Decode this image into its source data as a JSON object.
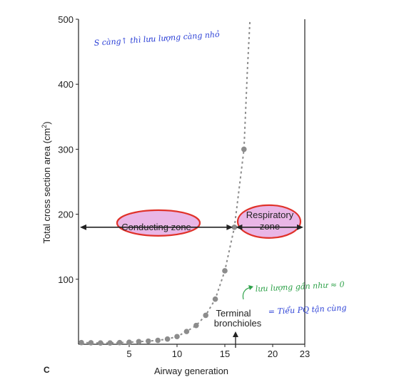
{
  "chart_data": {
    "type": "scatter",
    "xlabel": "Airway generation",
    "ylabel": "Total cross section area (cm²)",
    "ylabel_main": "Total cross section area (cm",
    "ylabel_sup": "2",
    "ylabel_end": ")",
    "xlim": [
      0,
      23
    ],
    "ylim": [
      0,
      500
    ],
    "x_ticks": [
      5,
      10,
      15,
      20,
      23
    ],
    "y_ticks": [
      100,
      200,
      300,
      400,
      500
    ],
    "grid": false,
    "x": [
      0,
      1,
      2,
      3,
      4,
      5,
      6,
      7,
      8,
      9,
      10,
      11,
      12,
      13,
      14,
      15,
      16
    ],
    "y": [
      2.5,
      2.3,
      2.0,
      2.0,
      2.5,
      3.1,
      4.0,
      4.8,
      6.0,
      8.0,
      11.8,
      19.6,
      28.8,
      44.5,
      69.4,
      113,
      180
    ],
    "extra_points": [
      {
        "x": 17,
        "y": 300
      }
    ],
    "curve_color": "#8c8c8c",
    "point_color": "#8c8c8c"
  },
  "panel_label": "C",
  "zones": {
    "conducting": {
      "label": "Conducting zone",
      "y": 180,
      "x_start": 0,
      "x_end": 16
    },
    "respiratory": {
      "label_line1": "Respiratory",
      "label_line2": "zone",
      "y": 180,
      "x_start": 16,
      "x_end": 23
    },
    "ellipse_fill": "#e9b6e6",
    "ellipse_stroke": "#e0322a"
  },
  "annotations": {
    "terminal_line1": "Terminal",
    "terminal_line2": "bronchioles",
    "note_top": "S càng↑ thì lưu lượng càng nhỏ",
    "note_flow": "lưu lượng gần như ≈ 0",
    "note_equals": "= Tiểu PQ tận cùng",
    "blue": "#2a3fd6",
    "green": "#2fa24a"
  }
}
